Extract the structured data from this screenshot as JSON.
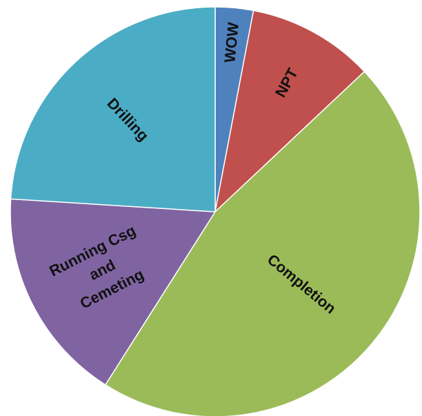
{
  "chart_data": {
    "type": "pie",
    "title": "",
    "legend": "none",
    "start_angle_deg": 0,
    "direction": "clockwise",
    "slices": [
      {
        "label": "WOW",
        "lines": [
          "WOW"
        ],
        "value": 3,
        "color": "#4F81BD"
      },
      {
        "label": "NPT",
        "lines": [
          "NPT"
        ],
        "value": 10,
        "color": "#C0504D"
      },
      {
        "label": "Completion",
        "lines": [
          "Completion"
        ],
        "value": 46,
        "color": "#9BBB59"
      },
      {
        "label": "Running Csg and Cemeting",
        "lines": [
          "Running Csg",
          "and",
          "Cemeting"
        ],
        "value": 17,
        "color": "#8064A2"
      },
      {
        "label": "Drilling",
        "lines": [
          "Drilling"
        ],
        "value": 24,
        "color": "#4BACC6"
      }
    ]
  }
}
